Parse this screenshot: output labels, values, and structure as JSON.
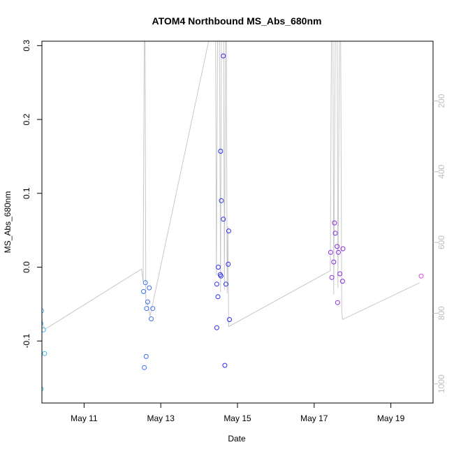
{
  "chart_data": {
    "type": "scatter",
    "title": "ATOM4 Northbound MS_Abs_680nm",
    "xlabel": "Date",
    "ylabel": "MS_Abs_680nm",
    "x_unit": "day of May",
    "xlim": [
      9.9,
      20.1
    ],
    "ylim": [
      -0.184,
      0.306
    ],
    "x_ticks": [
      {
        "value": 11,
        "label": "May 11"
      },
      {
        "value": 13,
        "label": "May 13"
      },
      {
        "value": 15,
        "label": "May 15"
      },
      {
        "value": 17,
        "label": "May 17"
      },
      {
        "value": 19,
        "label": "May 19"
      }
    ],
    "y_ticks": [
      {
        "value": -0.1,
        "label": "-0.1"
      },
      {
        "value": 0.0,
        "label": "0.0"
      },
      {
        "value": 0.1,
        "label": "0.1"
      },
      {
        "value": 0.2,
        "label": "0.2"
      },
      {
        "value": 0.3,
        "label": "0.3"
      }
    ],
    "y2_axis": {
      "reversed": true,
      "lim": [
        31,
        1054
      ],
      "color": "#bdbdbd",
      "ticks": [
        {
          "value": 200,
          "label": "200"
        },
        {
          "value": 400,
          "label": "400"
        },
        {
          "value": 600,
          "label": "600"
        },
        {
          "value": 800,
          "label": "800"
        },
        {
          "value": 1000,
          "label": "1000"
        }
      ]
    },
    "depth_line": {
      "color": "#c8c8c8",
      "points": [
        [
          9.87,
          500
        ],
        [
          9.88,
          673
        ],
        [
          9.89,
          792
        ],
        [
          9.9,
          806
        ],
        [
          9.91,
          827
        ],
        [
          9.94,
          837
        ],
        [
          9.99,
          845
        ],
        [
          12.5,
          675
        ],
        [
          12.54,
          711
        ],
        [
          12.57,
          30
        ],
        [
          12.59,
          30
        ],
        [
          12.61,
          775
        ],
        [
          12.65,
          770
        ],
        [
          12.72,
          809
        ],
        [
          14.25,
          30
        ],
        [
          14.43,
          30
        ],
        [
          14.45,
          693
        ],
        [
          14.48,
          30
        ],
        [
          14.53,
          30
        ],
        [
          14.56,
          741
        ],
        [
          14.58,
          30
        ],
        [
          14.64,
          30
        ],
        [
          14.66,
          733
        ],
        [
          14.69,
          30
        ],
        [
          14.71,
          30
        ],
        [
          14.73,
          743
        ],
        [
          14.75,
          555
        ],
        [
          14.77,
          838
        ],
        [
          17.42,
          680
        ],
        [
          17.45,
          30
        ],
        [
          17.49,
          30
        ],
        [
          17.51,
          747
        ],
        [
          17.55,
          30
        ],
        [
          17.6,
          30
        ],
        [
          17.62,
          729
        ],
        [
          17.66,
          30
        ],
        [
          17.69,
          30
        ],
        [
          17.72,
          794
        ],
        [
          17.74,
          818
        ],
        [
          19.75,
          714
        ]
      ]
    },
    "series": [
      {
        "color": "#3fb0e8",
        "points": [
          [
            9.87,
            -0.076
          ],
          [
            9.89,
            -0.059
          ],
          [
            9.94,
            -0.085
          ],
          [
            9.97,
            -0.117
          ],
          [
            9.88,
            -0.165
          ]
        ]
      },
      {
        "color": "#3a6ff0",
        "points": [
          [
            12.55,
            -0.033
          ],
          [
            12.6,
            -0.021
          ],
          [
            12.66,
            -0.047
          ],
          [
            12.7,
            -0.028
          ],
          [
            12.63,
            -0.056
          ],
          [
            12.79,
            -0.056
          ],
          [
            12.75,
            -0.07
          ],
          [
            12.62,
            -0.121
          ],
          [
            12.57,
            -0.136
          ]
        ]
      },
      {
        "color": "#2a2cf0",
        "points": [
          [
            14.63,
            0.286
          ],
          [
            14.56,
            0.157
          ],
          [
            14.58,
            0.09
          ],
          [
            14.63,
            0.065
          ],
          [
            14.77,
            0.049
          ],
          [
            14.76,
            0.004
          ],
          [
            14.5,
            0.0
          ],
          [
            14.55,
            -0.01
          ],
          [
            14.57,
            -0.012
          ],
          [
            14.46,
            -0.023
          ],
          [
            14.7,
            -0.023
          ],
          [
            14.49,
            -0.04
          ],
          [
            14.79,
            -0.071
          ],
          [
            14.46,
            -0.082
          ],
          [
            14.67,
            -0.133
          ]
        ]
      },
      {
        "color": "#8a2be2",
        "points": [
          [
            17.53,
            0.06
          ],
          [
            17.55,
            0.046
          ],
          [
            17.6,
            0.028
          ],
          [
            17.43,
            0.02
          ],
          [
            17.63,
            0.02
          ],
          [
            17.75,
            0.025
          ],
          [
            17.51,
            0.007
          ],
          [
            17.67,
            -0.009
          ],
          [
            17.46,
            -0.014
          ],
          [
            17.74,
            -0.019
          ],
          [
            17.61,
            -0.048
          ]
        ]
      },
      {
        "color": "#e03de0",
        "points": [
          [
            19.79,
            -0.012
          ]
        ]
      }
    ]
  }
}
